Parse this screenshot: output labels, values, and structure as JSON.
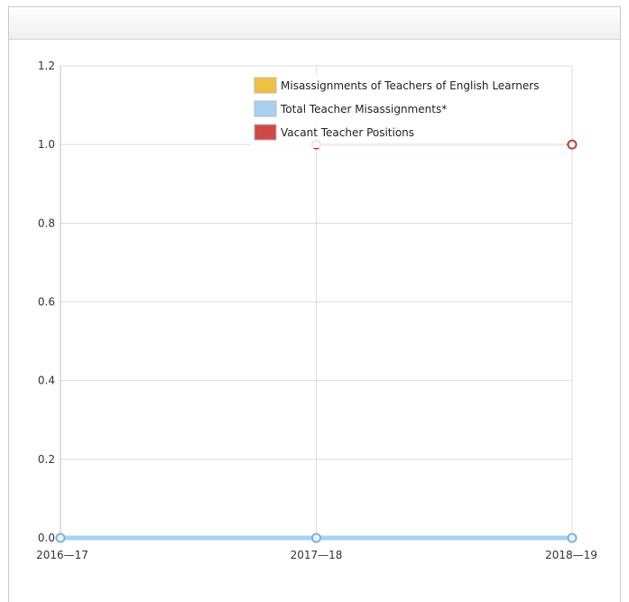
{
  "chart_data": {
    "type": "line",
    "title": "",
    "xlabel": "",
    "ylabel": "",
    "categories": [
      "2016—17",
      "2017—18",
      "2018—19"
    ],
    "ylim": [
      0,
      1.2
    ],
    "yticks": [
      "0.0",
      "0.2",
      "0.4",
      "0.6",
      "0.8",
      "1.0",
      "1.2"
    ],
    "yticks_values": [
      0,
      0.2,
      0.4,
      0.6,
      0.8,
      1.0,
      1.2
    ],
    "grid": true,
    "legend_position": "top-right",
    "series": [
      {
        "name": "Misassignments of Teachers of English Learners",
        "color": "#f0c040",
        "values": [
          0,
          0,
          0
        ]
      },
      {
        "name": "Total Teacher Misassignments*",
        "color": "#a8d0f0",
        "values": [
          0,
          0,
          0
        ]
      },
      {
        "name": "Vacant Teacher Positions",
        "color": "#d04848",
        "values": [
          null,
          1,
          1
        ]
      }
    ]
  }
}
